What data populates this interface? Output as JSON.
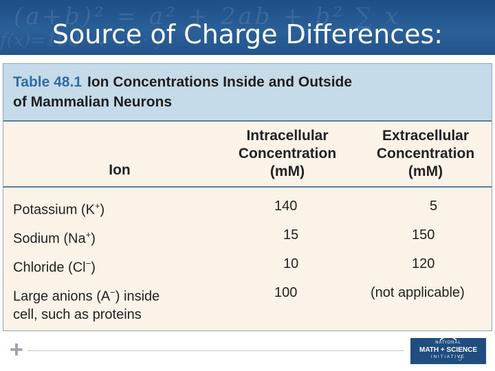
{
  "slide": {
    "title": "Source of Charge Differences:"
  },
  "table": {
    "number": "Table 48.1",
    "title_line1": "Ion Concentrations Inside and Outside",
    "title_line2": "of Mammalian Neurons",
    "headers": {
      "ion": "Ion",
      "intra_line1": "Intracellular",
      "intra_line2": "Concentration",
      "intra_line3": "(mM)",
      "extra_line1": "Extracellular",
      "extra_line2": "Concentration",
      "extra_line3": "(mM)"
    },
    "rows": [
      {
        "ion": "Potassium (K",
        "charge": "+",
        "close": ")",
        "ion_line2": "",
        "intra": "140",
        "extra": "5"
      },
      {
        "ion": "Sodium (Na",
        "charge": "+",
        "close": ")",
        "ion_line2": "",
        "intra": "15",
        "extra": "150"
      },
      {
        "ion": "Chloride (Cl",
        "charge": "−",
        "close": ")",
        "ion_line2": "",
        "intra": "10",
        "extra": "120"
      },
      {
        "ion": "Large anions (A",
        "charge": "−",
        "close": ") inside",
        "ion_line2": "cell, such as proteins",
        "intra": "100",
        "extra": "(not applicable)"
      }
    ]
  },
  "footer": {
    "logo_top": "NATIONAL",
    "logo_main": "MATH + SCIENCE",
    "logo_bottom": "INITIATIVE",
    "page_number": "5"
  }
}
